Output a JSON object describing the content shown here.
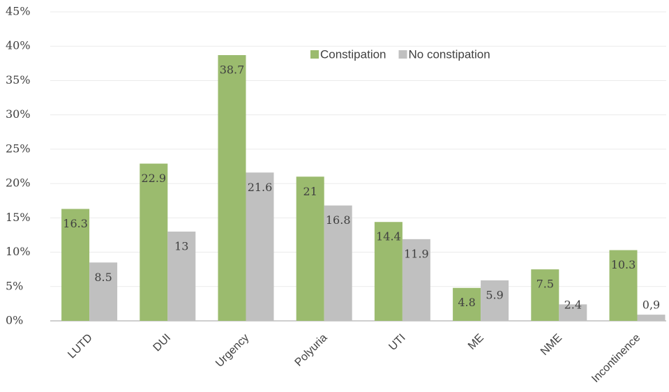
{
  "chart_data": {
    "type": "bar",
    "categories": [
      "LUTD",
      "DUI",
      "Urgency",
      "Polyuria",
      "UTI",
      "ME",
      "NME",
      "Incontinence"
    ],
    "series": [
      {
        "name": "Constipation",
        "color": "#9bbb6e",
        "values": [
          16.3,
          22.9,
          38.7,
          21,
          14.4,
          4.8,
          7.5,
          10.3
        ]
      },
      {
        "name": "No constipation",
        "color": "#c0c0c0",
        "values": [
          8.5,
          13,
          21.6,
          16.8,
          11.9,
          5.9,
          2.4,
          0.9
        ],
        "value_labels": [
          "8.5",
          "13",
          "21.6",
          "16.8",
          "11.9",
          "5.9",
          "2.4",
          "0,9"
        ]
      }
    ],
    "ylim": [
      0,
      45
    ],
    "yticks": [
      {
        "value": 0,
        "label": "0%"
      },
      {
        "value": 5,
        "label": "5%"
      },
      {
        "value": 10,
        "label": "10%"
      },
      {
        "value": 15,
        "label": "15%"
      },
      {
        "value": 20,
        "label": "20%"
      },
      {
        "value": 25,
        "label": "25%"
      },
      {
        "value": 30,
        "label": "30%"
      },
      {
        "value": 35,
        "label": "35%"
      },
      {
        "value": 40,
        "label": "40%"
      },
      {
        "value": 45,
        "label": "45%"
      }
    ],
    "grid": true,
    "legend": "top"
  }
}
